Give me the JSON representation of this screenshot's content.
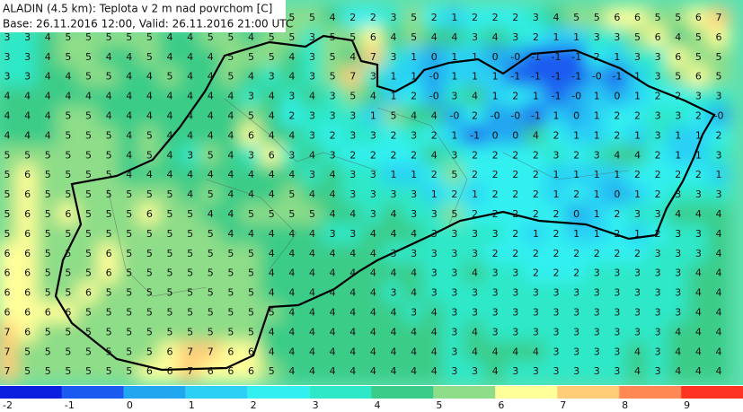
{
  "header": {
    "title": "ALADIN (4.5 km):  Teplota v 2 m nad povrchom [C]",
    "subtitle": "Base: 26.11.2016 12:00, Valid: 26.11.2016 21:00 UTC"
  },
  "grid": {
    "rows": [
      [
        null,
        null,
        null,
        null,
        null,
        null,
        null,
        null,
        null,
        null,
        null,
        null,
        null,
        null,
        "5",
        "5",
        "4",
        "2",
        "2",
        "3",
        "5",
        "2",
        "1",
        "2",
        "2",
        "2",
        "3",
        "4",
        "5",
        "5",
        "6",
        "6",
        "5",
        "5",
        "6",
        "7"
      ],
      [
        "3",
        "3",
        "4",
        "5",
        "5",
        "5",
        "5",
        "5",
        "4",
        "4",
        "5",
        "5",
        "4",
        "5",
        "5",
        "3",
        "5",
        "5",
        "6",
        "4",
        "5",
        "4",
        "4",
        "3",
        "4",
        "3",
        "2",
        "1",
        "1",
        "3",
        "3",
        "5",
        "6",
        "4",
        "5",
        "6"
      ],
      [
        "3",
        "3",
        "4",
        "5",
        "5",
        "4",
        "4",
        "5",
        "4",
        "4",
        "4",
        "5",
        "5",
        "5",
        "4",
        "3",
        "5",
        "4",
        "7",
        "3",
        "1",
        "0",
        "1",
        "1",
        "0",
        "-0",
        "-1",
        "-1",
        "-1",
        "2",
        "1",
        "3",
        "3",
        "6",
        "5",
        "5"
      ],
      [
        "3",
        "3",
        "4",
        "4",
        "5",
        "5",
        "4",
        "4",
        "5",
        "4",
        "4",
        "5",
        "4",
        "3",
        "4",
        "3",
        "5",
        "7",
        "3",
        "1",
        "1",
        "-0",
        "1",
        "1",
        "1",
        "-1",
        "-1",
        "-1",
        "-1",
        "-0",
        "-1",
        "1",
        "3",
        "5",
        "6",
        "5"
      ],
      [
        "4",
        "4",
        "4",
        "4",
        "4",
        "4",
        "4",
        "4",
        "4",
        "4",
        "4",
        "4",
        "3",
        "4",
        "3",
        "4",
        "3",
        "5",
        "4",
        "1",
        "2",
        "-0",
        "3",
        "4",
        "1",
        "2",
        "1",
        "-1",
        "-0",
        "1",
        "0",
        "1",
        "2",
        "2",
        "3",
        "3"
      ],
      [
        "4",
        "4",
        "4",
        "5",
        "5",
        "4",
        "4",
        "4",
        "4",
        "4",
        "4",
        "4",
        "5",
        "4",
        "2",
        "3",
        "3",
        "3",
        "1",
        "5",
        "4",
        "4",
        "-0",
        "2",
        "-0",
        "-0",
        "-1",
        "1",
        "0",
        "1",
        "2",
        "2",
        "3",
        "3",
        "2",
        "-0"
      ],
      [
        "4",
        "4",
        "4",
        "5",
        "5",
        "5",
        "4",
        "5",
        "4",
        "4",
        "4",
        "4",
        "6",
        "4",
        "4",
        "3",
        "2",
        "3",
        "3",
        "2",
        "3",
        "2",
        "1",
        "-1",
        "0",
        "0",
        "4",
        "2",
        "1",
        "1",
        "2",
        "1",
        "3",
        "1",
        "1",
        "2"
      ],
      [
        "5",
        "5",
        "5",
        "5",
        "5",
        "5",
        "4",
        "5",
        "4",
        "3",
        "5",
        "4",
        "3",
        "6",
        "3",
        "4",
        "3",
        "2",
        "2",
        "2",
        "2",
        "4",
        "3",
        "2",
        "2",
        "2",
        "2",
        "3",
        "2",
        "3",
        "4",
        "4",
        "2",
        "1",
        "1",
        "3"
      ],
      [
        "5",
        "6",
        "5",
        "5",
        "5",
        "5",
        "4",
        "4",
        "4",
        "4",
        "4",
        "4",
        "4",
        "4",
        "4",
        "3",
        "4",
        "3",
        "3",
        "1",
        "1",
        "2",
        "5",
        "2",
        "2",
        "2",
        "2",
        "1",
        "1",
        "1",
        "1",
        "2",
        "2",
        "2",
        "2",
        "1"
      ],
      [
        "5",
        "6",
        "5",
        "5",
        "5",
        "5",
        "5",
        "5",
        "5",
        "4",
        "5",
        "4",
        "4",
        "4",
        "5",
        "4",
        "4",
        "3",
        "3",
        "3",
        "3",
        "1",
        "2",
        "1",
        "2",
        "2",
        "2",
        "1",
        "2",
        "1",
        "0",
        "1",
        "2",
        "3",
        "3",
        "3"
      ],
      [
        "5",
        "6",
        "5",
        "6",
        "5",
        "5",
        "5",
        "6",
        "5",
        "5",
        "4",
        "4",
        "5",
        "5",
        "5",
        "5",
        "4",
        "4",
        "3",
        "4",
        "3",
        "3",
        "5",
        "2",
        "2",
        "2",
        "2",
        "2",
        "0",
        "1",
        "2",
        "3",
        "3",
        "4",
        "4",
        "4"
      ],
      [
        "5",
        "6",
        "5",
        "5",
        "5",
        "5",
        "5",
        "5",
        "5",
        "5",
        "5",
        "4",
        "4",
        "4",
        "4",
        "4",
        "3",
        "3",
        "4",
        "4",
        "4",
        "3",
        "3",
        "3",
        "3",
        "2",
        "1",
        "2",
        "1",
        "1",
        "2",
        "1",
        "2",
        "3",
        "3",
        "4"
      ],
      [
        "6",
        "6",
        "5",
        "5",
        "5",
        "6",
        "5",
        "5",
        "5",
        "5",
        "5",
        "5",
        "5",
        "4",
        "4",
        "4",
        "4",
        "4",
        "4",
        "3",
        "3",
        "3",
        "3",
        "3",
        "2",
        "2",
        "2",
        "2",
        "2",
        "2",
        "2",
        "2",
        "3",
        "3",
        "3",
        "4"
      ],
      [
        "6",
        "6",
        "5",
        "5",
        "5",
        "6",
        "5",
        "5",
        "5",
        "5",
        "5",
        "5",
        "5",
        "4",
        "4",
        "4",
        "4",
        "4",
        "4",
        "4",
        "4",
        "3",
        "3",
        "4",
        "3",
        "3",
        "2",
        "2",
        "2",
        "3",
        "3",
        "3",
        "3",
        "3",
        "4",
        "4"
      ],
      [
        "6",
        "6",
        "5",
        "5",
        "6",
        "5",
        "5",
        "5",
        "5",
        "5",
        "5",
        "5",
        "5",
        "4",
        "4",
        "4",
        "4",
        "4",
        "4",
        "3",
        "4",
        "3",
        "3",
        "3",
        "3",
        "3",
        "3",
        "3",
        "3",
        "3",
        "3",
        "3",
        "3",
        "3",
        "4",
        "4"
      ],
      [
        "6",
        "6",
        "6",
        "6",
        "5",
        "5",
        "5",
        "5",
        "5",
        "5",
        "5",
        "5",
        "5",
        "5",
        "4",
        "4",
        "4",
        "4",
        "4",
        "4",
        "3",
        "4",
        "3",
        "3",
        "3",
        "3",
        "3",
        "3",
        "3",
        "3",
        "3",
        "3",
        "3",
        "3",
        "4",
        "4"
      ],
      [
        "7",
        "6",
        "5",
        "5",
        "5",
        "5",
        "5",
        "5",
        "5",
        "5",
        "5",
        "5",
        "5",
        "4",
        "4",
        "4",
        "4",
        "4",
        "4",
        "4",
        "4",
        "4",
        "3",
        "4",
        "3",
        "3",
        "3",
        "3",
        "3",
        "3",
        "3",
        "3",
        "3",
        "4",
        "4",
        "4"
      ],
      [
        "7",
        "5",
        "5",
        "5",
        "5",
        "5",
        "5",
        "5",
        "6",
        "7",
        "7",
        "6",
        "6",
        "4",
        "4",
        "4",
        "4",
        "4",
        "4",
        "4",
        "4",
        "4",
        "3",
        "4",
        "4",
        "4",
        "4",
        "3",
        "3",
        "3",
        "3",
        "4",
        "3",
        "4",
        "4",
        "4"
      ],
      [
        "7",
        "5",
        "5",
        "5",
        "5",
        "5",
        "5",
        "6",
        "6",
        "7",
        "6",
        "6",
        "6",
        "5",
        "4",
        "4",
        "4",
        "4",
        "4",
        "4",
        "4",
        "4",
        "3",
        "3",
        "4",
        "3",
        "3",
        "3",
        "3",
        "3",
        "3",
        "4",
        "3",
        "4",
        "4",
        "4"
      ]
    ]
  },
  "legend": {
    "labels": [
      "-2",
      "-1",
      "0",
      "1",
      "2",
      "3",
      "4",
      "5",
      "6",
      "7",
      "8",
      "9"
    ],
    "colors": [
      "#0a1fe0",
      "#1a5af0",
      "#21a6f0",
      "#2cd0f5",
      "#33f0f0",
      "#2ee8c8",
      "#3acc88",
      "#8edd88",
      "#ffff99",
      "#ffcc77",
      "#ff8855",
      "#ff3322"
    ]
  }
}
